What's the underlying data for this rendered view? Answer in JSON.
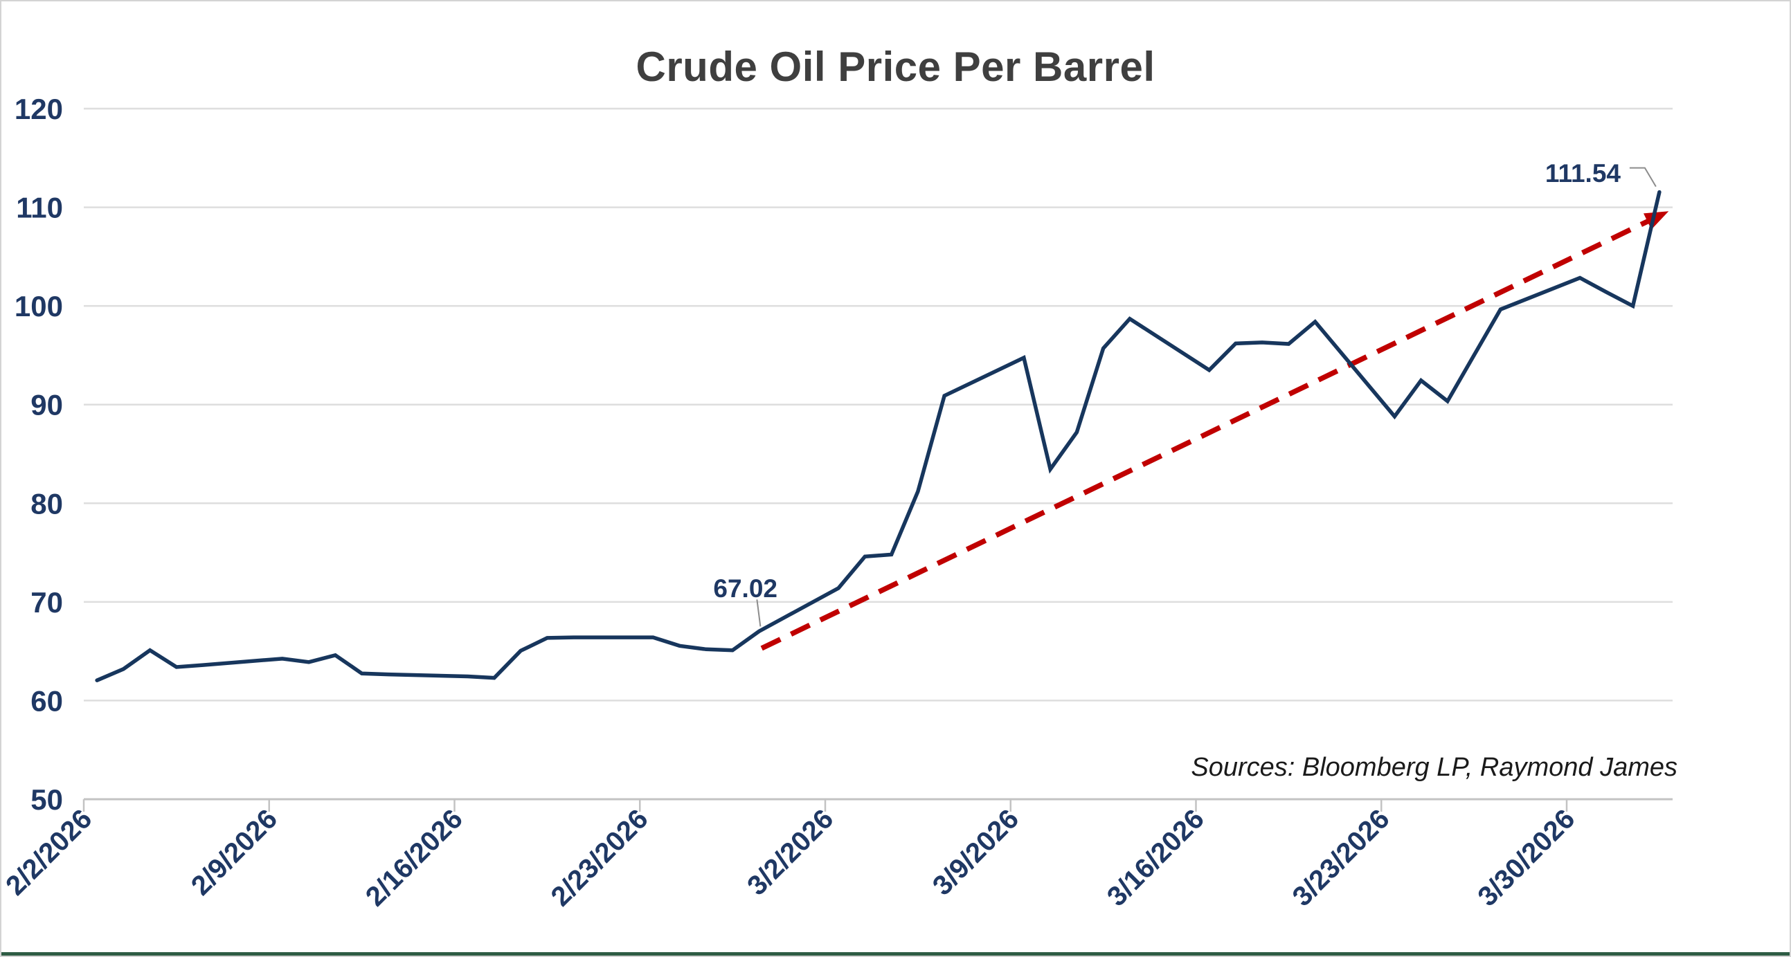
{
  "chart_data": {
    "type": "line",
    "title": "Crude Oil Price Per Barrel",
    "source_note": "Sources: Bloomberg LP, Raymond James",
    "legend": "none",
    "x_axis": {
      "range_start": "2/2/2026",
      "range_end": "4/2/2026",
      "tick_labels": [
        "2/2/2026",
        "2/9/2026",
        "2/16/2026",
        "2/23/2026",
        "3/2/2026",
        "3/9/2026",
        "3/16/2026",
        "3/23/2026",
        "3/30/2026"
      ],
      "grid": false,
      "label_rotation_deg": -45
    },
    "y_axis": {
      "min": 50,
      "max": 120,
      "step": 10,
      "ticks": [
        120,
        110,
        100,
        90,
        80,
        70,
        60,
        50
      ],
      "grid": true
    },
    "series": [
      {
        "name": "Crude oil price per barrel (USD)",
        "color": "#17365d",
        "points": [
          [
            "2/2/2026",
            62.05
          ],
          [
            "2/3/2026",
            63.2
          ],
          [
            "2/4/2026",
            65.1
          ],
          [
            "2/5/2026",
            63.4
          ],
          [
            "2/6/2026",
            63.6
          ],
          [
            "2/9/2026",
            64.25
          ],
          [
            "2/10/2026",
            63.9
          ],
          [
            "2/11/2026",
            64.6
          ],
          [
            "2/12/2026",
            62.75
          ],
          [
            "2/13/2026",
            62.65
          ],
          [
            "2/16/2026",
            62.45
          ],
          [
            "2/17/2026",
            62.3
          ],
          [
            "2/18/2026",
            65.05
          ],
          [
            "2/19/2026",
            66.35
          ],
          [
            "2/20/2026",
            66.4
          ],
          [
            "2/23/2026",
            66.4
          ],
          [
            "2/24/2026",
            65.55
          ],
          [
            "2/25/2026",
            65.2
          ],
          [
            "2/26/2026",
            65.1
          ],
          [
            "2/27/2026",
            67.02
          ],
          [
            "3/2/2026",
            71.4
          ],
          [
            "3/3/2026",
            74.6
          ],
          [
            "3/4/2026",
            74.8
          ],
          [
            "3/5/2026",
            81.2
          ],
          [
            "3/6/2026",
            90.9
          ],
          [
            "3/9/2026",
            94.75
          ],
          [
            "3/10/2026",
            83.45
          ],
          [
            "3/11/2026",
            87.2
          ],
          [
            "3/12/2026",
            95.7
          ],
          [
            "3/13/2026",
            98.7
          ],
          [
            "3/16/2026",
            93.5
          ],
          [
            "3/17/2026",
            96.2
          ],
          [
            "3/18/2026",
            96.3
          ],
          [
            "3/19/2026",
            96.15
          ],
          [
            "3/20/2026",
            98.4
          ],
          [
            "3/23/2026",
            88.8
          ],
          [
            "3/24/2026",
            92.45
          ],
          [
            "3/25/2026",
            90.35
          ],
          [
            "3/26/2026",
            95.0
          ],
          [
            "3/27/2026",
            99.65
          ],
          [
            "3/30/2026",
            102.85
          ],
          [
            "3/31/2026",
            101.4
          ],
          [
            "4/1/2026",
            100.0
          ],
          [
            "4/2/2026",
            111.54
          ]
        ]
      }
    ],
    "trend_line": {
      "color": "#c00000",
      "style": "dashed",
      "arrowhead": true,
      "start": {
        "date": "2/27/2026",
        "value": 65.3
      },
      "end": {
        "date": "4/2/2026",
        "value": 109.6
      }
    },
    "annotations": [
      {
        "text": "67.02",
        "date": "2/27/2026",
        "value": 67.02
      },
      {
        "text": "111.54",
        "date": "4/2/2026",
        "value": 111.54
      }
    ]
  },
  "colors": {
    "line": "#17365d",
    "trend": "#c00000",
    "axis_labels": "#1f3864",
    "gridline": "#dedede",
    "axis_line": "#c3c3c3",
    "title": "#3f3f3f",
    "callout": "#8c8c8c",
    "accent_bar": "#2e5c44"
  }
}
